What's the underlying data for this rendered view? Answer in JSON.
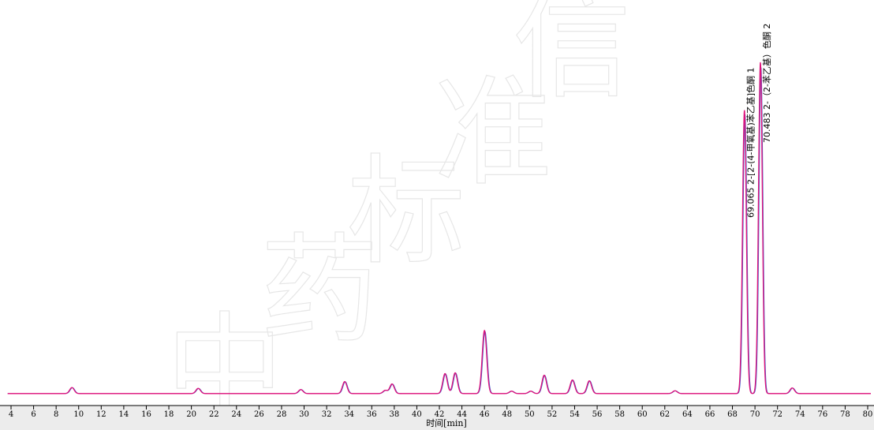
{
  "chart_data": {
    "type": "line",
    "title": "",
    "xlabel": "时间[min]",
    "ylabel": "",
    "xlim": [
      3.7,
      80.3
    ],
    "ylim": [
      0,
      100
    ],
    "x_ticks": [
      4,
      6,
      8,
      10,
      12,
      14,
      16,
      18,
      20,
      22,
      24,
      26,
      28,
      30,
      32,
      34,
      36,
      38,
      40,
      42,
      44,
      46,
      48,
      50,
      52,
      54,
      56,
      58,
      60,
      62,
      64,
      66,
      68,
      70,
      72,
      74,
      76,
      78,
      80
    ],
    "grid": false,
    "legend": "none",
    "baseline": 3.0,
    "peaks": [
      {
        "rt": 9.4,
        "height": 1.5
      },
      {
        "rt": 20.6,
        "height": 1.3
      },
      {
        "rt": 29.7,
        "height": 1.0
      },
      {
        "rt": 33.6,
        "height": 3.0
      },
      {
        "rt": 37.2,
        "height": 0.8
      },
      {
        "rt": 37.8,
        "height": 2.4
      },
      {
        "rt": 42.5,
        "height": 5.0
      },
      {
        "rt": 43.4,
        "height": 5.2
      },
      {
        "rt": 46.0,
        "height": 15.8
      },
      {
        "rt": 48.4,
        "height": 0.6
      },
      {
        "rt": 50.1,
        "height": 0.6
      },
      {
        "rt": 51.3,
        "height": 4.6
      },
      {
        "rt": 53.8,
        "height": 3.4
      },
      {
        "rt": 55.3,
        "height": 3.2
      },
      {
        "rt": 62.9,
        "height": 0.7
      },
      {
        "rt": 69.065,
        "height": 71.0
      },
      {
        "rt": 70.483,
        "height": 83.0
      },
      {
        "rt": 73.3,
        "height": 1.4
      }
    ],
    "series": [
      {
        "color": "#e0107a"
      },
      {
        "color": "#3a5fcd"
      }
    ],
    "annotations": [
      {
        "rt": 69.065,
        "text": "69.065  2-[2-(4-甲氧基)苯乙基]色酮  1"
      },
      {
        "rt": 70.483,
        "text": "70.483  2-（2-苯乙基）色酮  2"
      }
    ]
  },
  "watermark": {
    "chars": [
      "中",
      "药",
      "标",
      "准",
      "信"
    ]
  }
}
